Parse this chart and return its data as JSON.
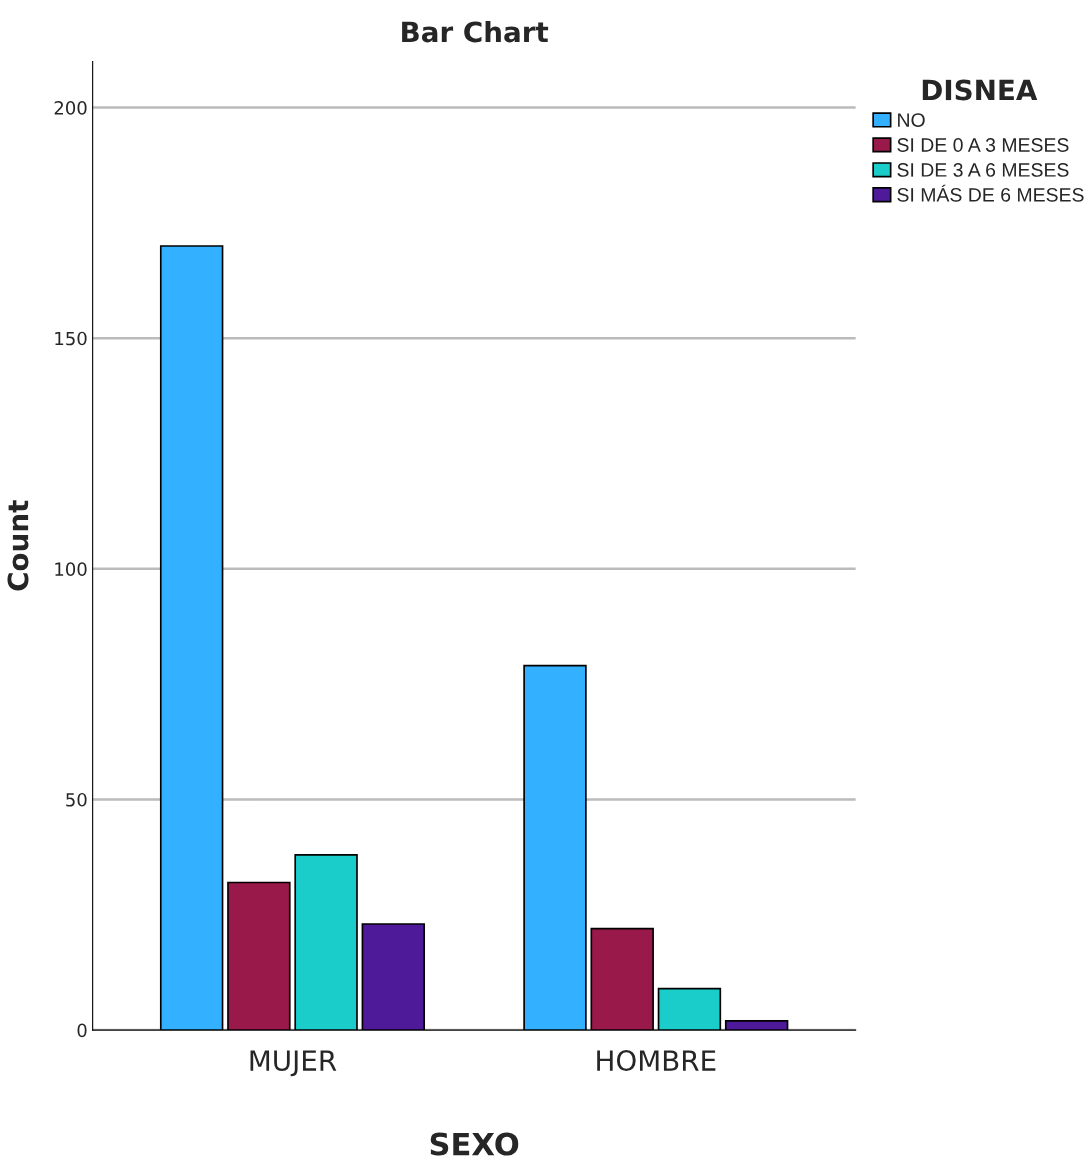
{
  "chart_data": {
    "type": "bar",
    "title": "Bar Chart",
    "xlabel": "SEXO",
    "ylabel": "Count",
    "legend_title": "DISNEA",
    "categories": [
      "MUJER",
      "HOMBRE"
    ],
    "series": [
      {
        "name": "NO",
        "color": "#33b0ff",
        "values": [
          170,
          79
        ]
      },
      {
        "name": "SI DE 0 A 3 MESES",
        "color": "#991a4a",
        "values": [
          32,
          22
        ]
      },
      {
        "name": "SI DE 3 A 6 MESES",
        "color": "#1acdcb",
        "values": [
          38,
          9
        ]
      },
      {
        "name": "SI MÁS DE 6 MESES",
        "color": "#4e1a99",
        "values": [
          23,
          2
        ]
      }
    ],
    "ylim": [
      0,
      210
    ],
    "yticks": [
      0,
      50,
      100,
      150,
      200
    ],
    "grid": "y",
    "legend": "top right"
  }
}
